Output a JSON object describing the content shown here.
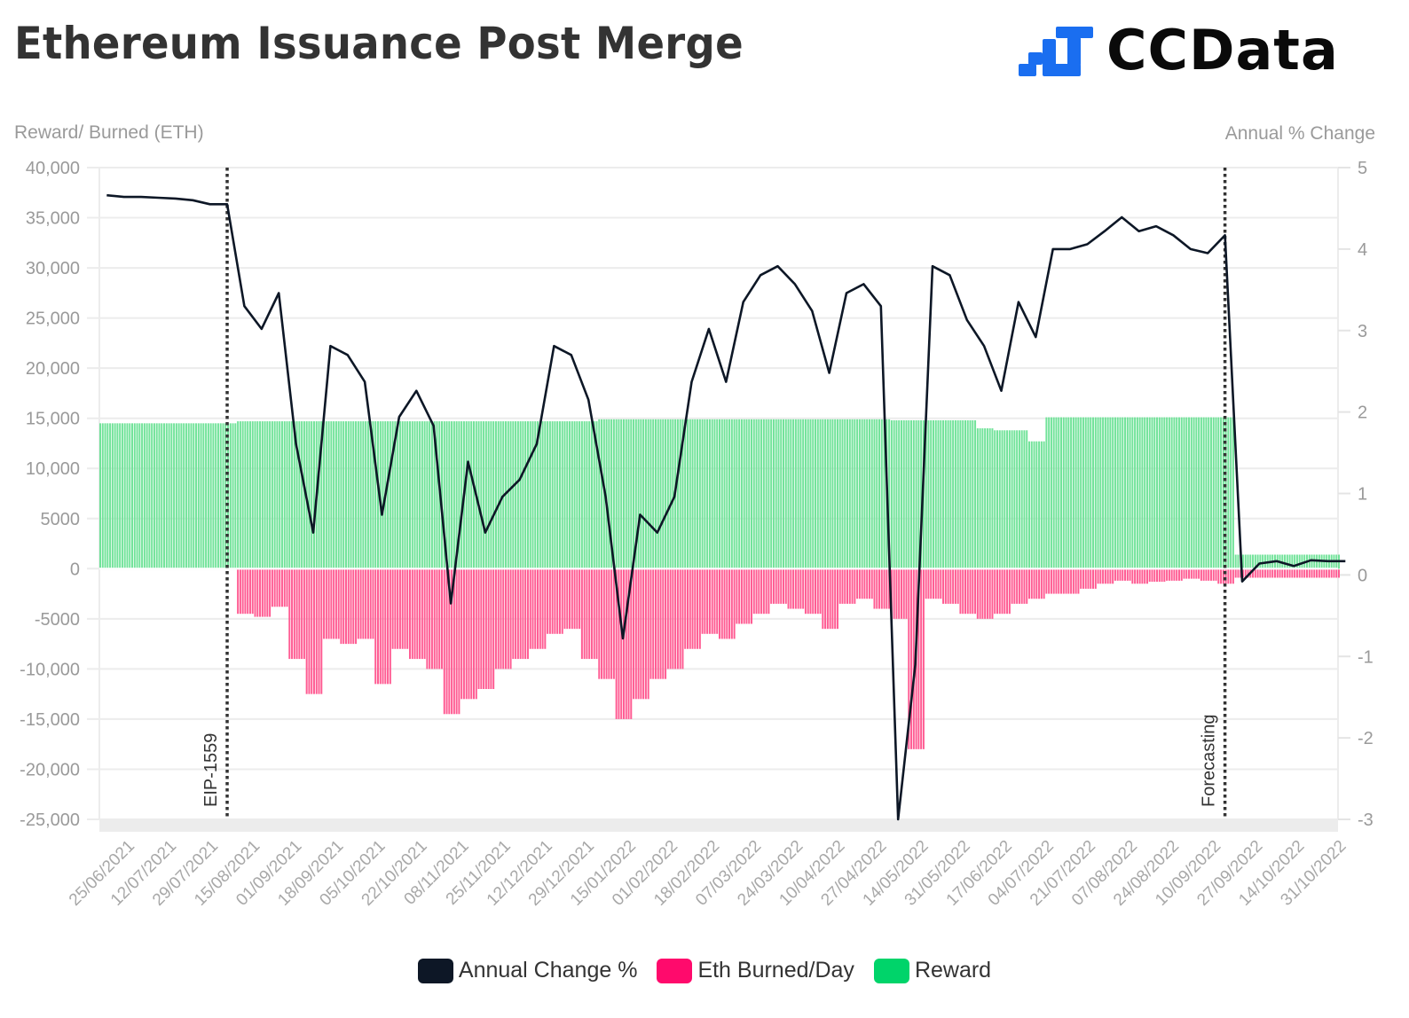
{
  "title": "Ethereum Issuance Post Merge",
  "logo": {
    "text": "CCData",
    "color": "#1a6ef0"
  },
  "chart_data": {
    "type": "bar+line",
    "title": "Ethereum Issuance Post Merge",
    "ylabel_left": "Reward/ Burned (ETH)",
    "ylabel_right": "Annual % Change",
    "ylim_left": [
      -25000,
      40000
    ],
    "ylim_right": [
      -3,
      5
    ],
    "yticks_left": [
      "40,000",
      "35,000",
      "30,000",
      "25,000",
      "20,000",
      "15,000",
      "10,000",
      "5000",
      "0",
      "-5000",
      "-10,000",
      "-15,000",
      "-20,000",
      "-25,000"
    ],
    "yticks_left_values": [
      40000,
      35000,
      30000,
      25000,
      20000,
      15000,
      10000,
      5000,
      0,
      -5000,
      -10000,
      -15000,
      -20000,
      -25000
    ],
    "yticks_right": [
      "5",
      "4",
      "3",
      "2",
      "1",
      "0",
      "-1",
      "-2",
      "-3"
    ],
    "xlim": [
      "2021-06-14",
      "2022-10-31"
    ],
    "xticks": [
      "25/06/2021",
      "12/07/2021",
      "29/07/2021",
      "15/08/2021",
      "01/09/2021",
      "18/09/2021",
      "05/10/2021",
      "22/10/2021",
      "08/11/2021",
      "25/11/2021",
      "12/12/2021",
      "29/12/2021",
      "15/01/2022",
      "01/02/2022",
      "18/02/2022",
      "07/03/2022",
      "24/03/2022",
      "10/04/2022",
      "27/04/2022",
      "14/05/2022",
      "31/05/2022",
      "17/06/2022",
      "04/07/2022",
      "21/07/2022",
      "07/08/2022",
      "24/08/2022",
      "10/09/2022",
      "27/09/2022",
      "14/10/2022",
      "31/10/2022"
    ],
    "grid": true,
    "legend_position": "bottom",
    "annotations": [
      {
        "label": "EIP-1559",
        "date": "2021-08-05"
      },
      {
        "label": "Forecasting",
        "date": "2022-09-15"
      }
    ],
    "x": [
      "2021-06-14",
      "2021-06-21",
      "2021-06-28",
      "2021-07-05",
      "2021-07-12",
      "2021-07-19",
      "2021-07-26",
      "2021-08-02",
      "2021-08-09",
      "2021-08-16",
      "2021-08-23",
      "2021-08-30",
      "2021-09-06",
      "2021-09-13",
      "2021-09-20",
      "2021-09-27",
      "2021-10-04",
      "2021-10-11",
      "2021-10-18",
      "2021-10-25",
      "2021-11-01",
      "2021-11-08",
      "2021-11-15",
      "2021-11-22",
      "2021-11-29",
      "2021-12-06",
      "2021-12-13",
      "2021-12-20",
      "2021-12-27",
      "2022-01-03",
      "2022-01-10",
      "2022-01-17",
      "2022-01-24",
      "2022-01-31",
      "2022-02-07",
      "2022-02-14",
      "2022-02-21",
      "2022-02-28",
      "2022-03-07",
      "2022-03-14",
      "2022-03-21",
      "2022-03-28",
      "2022-04-04",
      "2022-04-11",
      "2022-04-18",
      "2022-04-25",
      "2022-05-02",
      "2022-05-09",
      "2022-05-16",
      "2022-05-23",
      "2022-05-30",
      "2022-06-06",
      "2022-06-13",
      "2022-06-20",
      "2022-06-27",
      "2022-07-04",
      "2022-07-11",
      "2022-07-18",
      "2022-07-25",
      "2022-08-01",
      "2022-08-08",
      "2022-08-15",
      "2022-08-22",
      "2022-08-29",
      "2022-09-05",
      "2022-09-12",
      "2022-09-19",
      "2022-09-26",
      "2022-10-03",
      "2022-10-10",
      "2022-10-17",
      "2022-10-24",
      "2022-10-31"
    ],
    "series": [
      {
        "name": "Annual Change %",
        "type": "line",
        "axis": "right",
        "color": "#0d1726",
        "values": [
          4.66,
          4.64,
          4.64,
          4.63,
          4.62,
          4.6,
          4.55,
          4.55,
          3.3,
          3.02,
          3.46,
          1.61,
          0.52,
          2.81,
          2.7,
          2.37,
          0.74,
          1.94,
          2.26,
          1.83,
          -0.35,
          1.39,
          0.52,
          0.96,
          1.17,
          1.61,
          2.81,
          2.7,
          2.15,
          0.96,
          -0.78,
          0.74,
          0.52,
          0.96,
          2.37,
          3.02,
          2.37,
          3.35,
          3.68,
          3.79,
          3.57,
          3.24,
          2.48,
          3.46,
          3.57,
          3.3,
          -3.0,
          -1.1,
          3.79,
          3.68,
          3.13,
          2.81,
          2.26,
          3.35,
          2.92,
          4.0,
          4.0,
          4.06,
          4.22,
          4.39,
          4.22,
          4.28,
          4.17,
          4.0,
          3.95,
          4.17,
          -0.08,
          0.14,
          0.17,
          0.11,
          0.18,
          0.17,
          0.17
        ]
      },
      {
        "name": "Eth Burned/Day",
        "type": "bar",
        "axis": "left",
        "color": "#ff0a6c",
        "values": [
          0,
          0,
          0,
          0,
          0,
          0,
          0,
          0,
          -4500,
          -4800,
          -3800,
          -9000,
          -12500,
          -7000,
          -7500,
          -7000,
          -11500,
          -8000,
          -9000,
          -10000,
          -14500,
          -13000,
          -12000,
          -10000,
          -9000,
          -8000,
          -6500,
          -6000,
          -9000,
          -11000,
          -15000,
          -13000,
          -11000,
          -10000,
          -8000,
          -6500,
          -7000,
          -5500,
          -4500,
          -3500,
          -4000,
          -4500,
          -6000,
          -3500,
          -3000,
          -4000,
          -5000,
          -18000,
          -3000,
          -3500,
          -4500,
          -5000,
          -4500,
          -3500,
          -3000,
          -2500,
          -2500,
          -2000,
          -1500,
          -1200,
          -1500,
          -1300,
          -1200,
          -1000,
          -1200,
          -1500,
          -900,
          -900,
          -900,
          -900,
          -900,
          -900,
          -900
        ]
      },
      {
        "name": "Reward",
        "type": "bar",
        "axis": "left",
        "color": "#00d46a",
        "values": [
          14500,
          14500,
          14500,
          14500,
          14500,
          14500,
          14500,
          14500,
          14700,
          14700,
          14700,
          14700,
          14700,
          14700,
          14700,
          14700,
          14700,
          14700,
          14700,
          14700,
          14700,
          14700,
          14700,
          14700,
          14700,
          14700,
          14700,
          14700,
          14700,
          14900,
          14900,
          14900,
          14900,
          14900,
          14900,
          14900,
          14900,
          14900,
          14900,
          14900,
          14900,
          14900,
          14900,
          14900,
          14900,
          14900,
          14800,
          14800,
          14800,
          14800,
          14800,
          14000,
          13800,
          13800,
          12700,
          15100,
          15100,
          15100,
          15100,
          15100,
          15100,
          15100,
          15100,
          15100,
          15100,
          15100,
          1400,
          1400,
          1400,
          1400,
          1400,
          1400,
          1400
        ]
      }
    ]
  }
}
